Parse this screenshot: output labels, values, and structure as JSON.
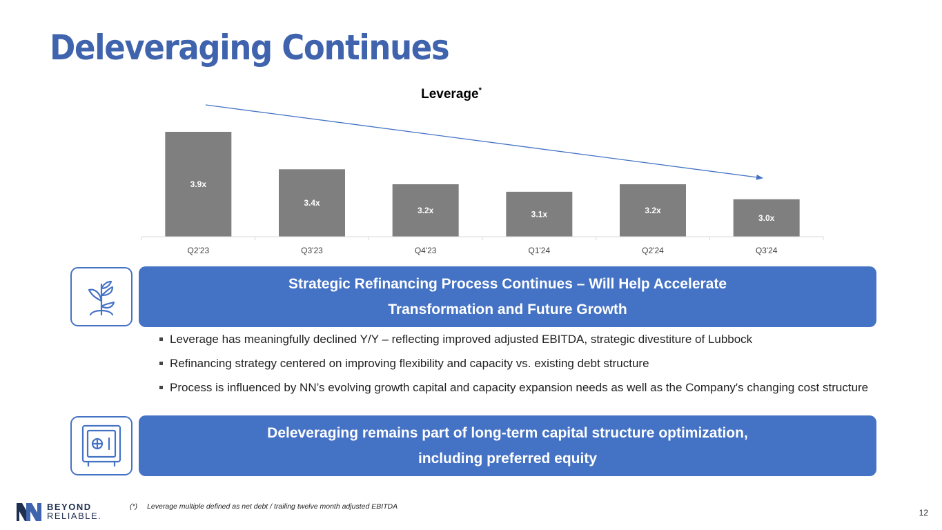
{
  "page": {
    "title": "Deleveraging Continues",
    "page_number": "12"
  },
  "chart_data": {
    "type": "bar",
    "title": "Leverage",
    "title_superscript": "*",
    "categories": [
      "Q2'23",
      "Q3'23",
      "Q4'23",
      "Q1'24",
      "Q2'24",
      "Q3'24"
    ],
    "values": [
      3.9,
      3.4,
      3.2,
      3.1,
      3.2,
      3.0
    ],
    "data_labels": [
      "3.9x",
      "3.4x",
      "3.2x",
      "3.1x",
      "3.2x",
      "3.0x"
    ],
    "bar_color": "#7f7f7f",
    "trend_arrow_color": "#4472c4",
    "xlabel": "",
    "ylabel": "",
    "ylim": [
      2.5,
      4.0
    ],
    "grid": false
  },
  "section1": {
    "icon": "plant-sprout-icon",
    "title_line1": "Strategic Refinancing Process Continues – Will Help Accelerate",
    "title_line2": "Transformation and Future Growth",
    "bullets": [
      "Leverage has meaningfully declined Y/Y – reflecting improved adjusted EBITDA, strategic divestiture of Lubbock",
      "Refinancing strategy centered on improving flexibility and capacity vs. existing debt structure",
      "Process is influenced by NN’s evolving growth capital and capacity expansion needs as well as the Company's changing cost structure"
    ]
  },
  "section2": {
    "icon": "safe-vault-icon",
    "title_line1": "Deleveraging remains part of long-term capital structure optimization,",
    "title_line2": "including preferred equity"
  },
  "footer": {
    "logo_line1": "BEYOND",
    "logo_line2": "RELIABLE.",
    "footnote_mark": "(*)",
    "footnote_text": "Leverage multiple defined as net debt / trailing twelve month adjusted EBITDA"
  },
  "colors": {
    "title": "#3f64ad",
    "banner": "#4472c4",
    "bar": "#7f7f7f"
  }
}
